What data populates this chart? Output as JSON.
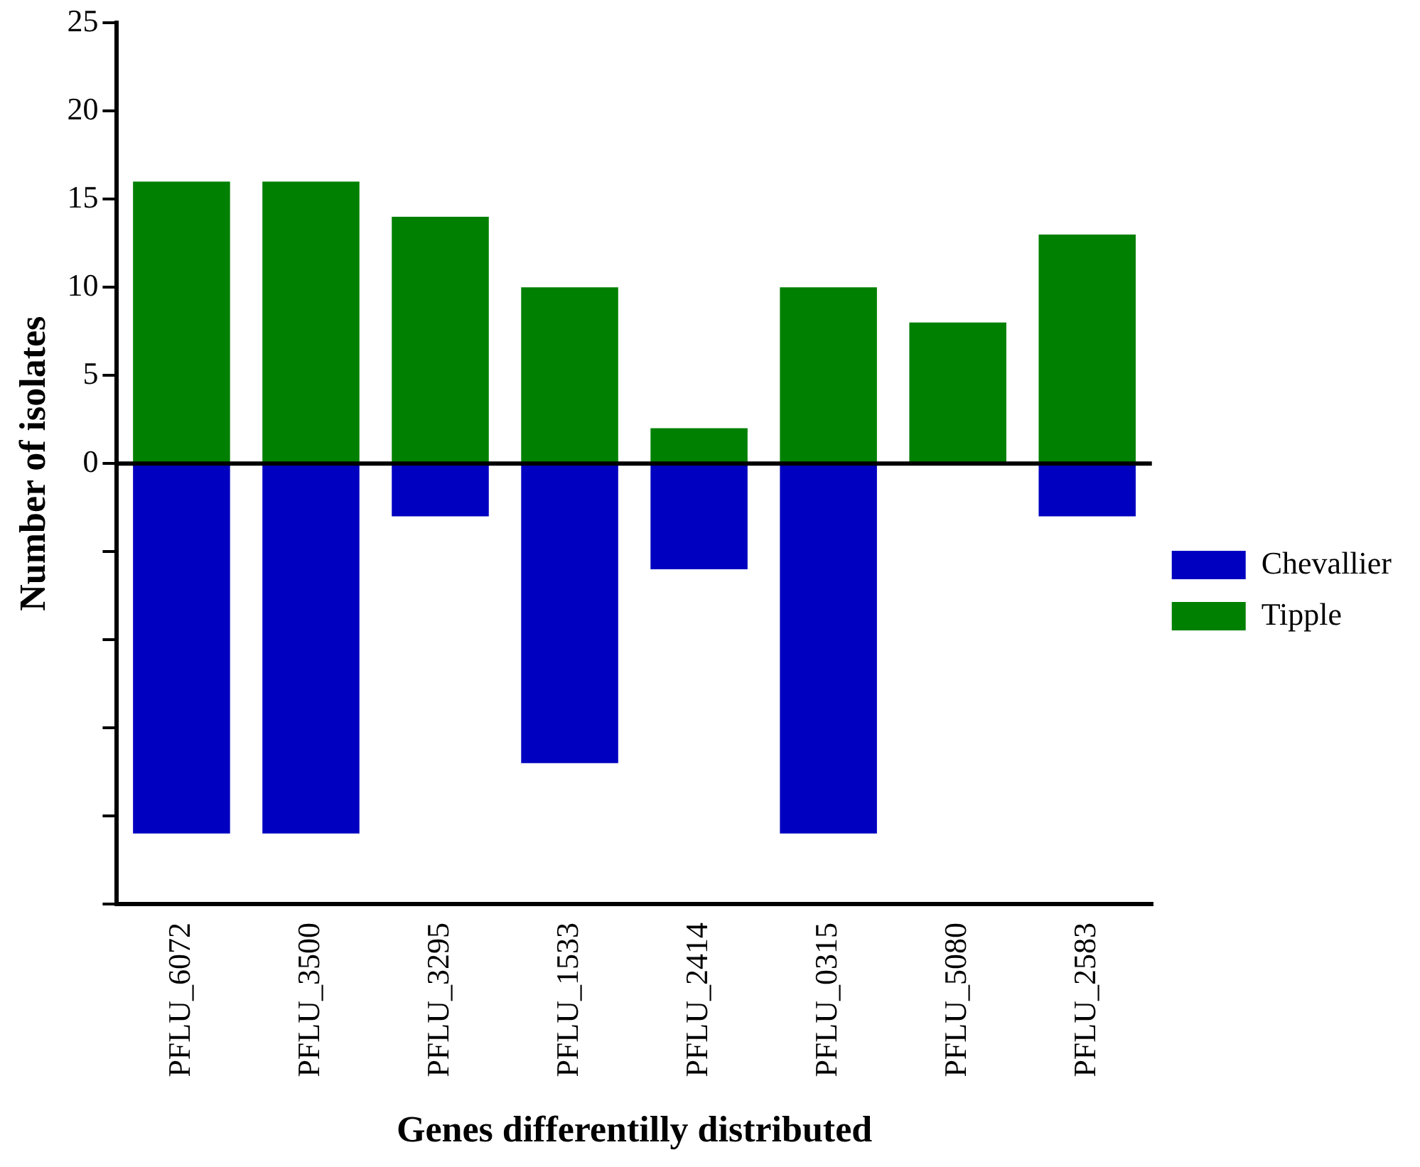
{
  "chart_data": {
    "type": "bar",
    "stacked": true,
    "xlabel": "Genes differentilly distributed",
    "ylabel": "Number of isolates",
    "categories": [
      "PFLU_6072",
      "PFLU_3500",
      "PFLU_3295",
      "PFLU_1533",
      "PFLU_2414",
      "PFLU_0315",
      "PFLU_5080",
      "PFLU_2583"
    ],
    "series": [
      {
        "name": "Chevallier",
        "color": "#0000c0",
        "values": [
          -21,
          -21,
          -3,
          -17,
          -6,
          -21,
          0,
          -3
        ]
      },
      {
        "name": "Tipple",
        "color": "#008000",
        "values": [
          16,
          16,
          14,
          10,
          2,
          10,
          8,
          13
        ]
      }
    ],
    "ylim": [
      -25,
      25
    ],
    "yticks": [
      {
        "value": -25,
        "label": null
      },
      {
        "value": -20,
        "label": null
      },
      {
        "value": -15,
        "label": null
      },
      {
        "value": -10,
        "label": null
      },
      {
        "value": -5,
        "label": null
      },
      0,
      5,
      10,
      15,
      20,
      25
    ],
    "ref_lines": [
      {
        "axis": "y",
        "value": 0,
        "color": "#000000"
      }
    ],
    "grid": false,
    "legend": "right"
  }
}
